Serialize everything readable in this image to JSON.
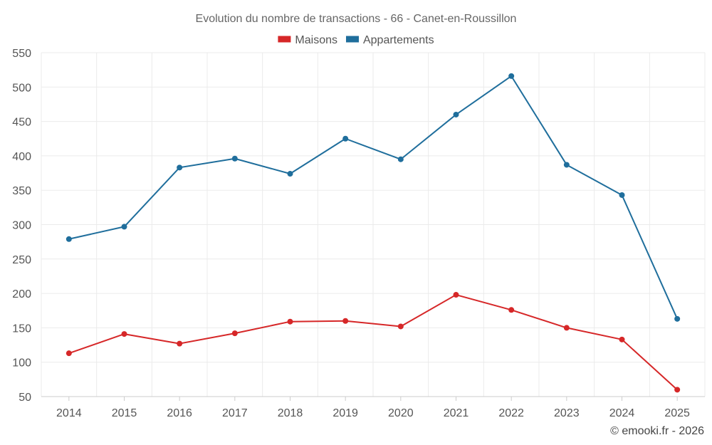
{
  "chart_data": {
    "type": "line",
    "title": "Evolution du nombre de transactions - 66 - Canet-en-Roussillon",
    "categories": [
      "2014",
      "2015",
      "2016",
      "2017",
      "2018",
      "2019",
      "2020",
      "2021",
      "2022",
      "2023",
      "2024",
      "2025"
    ],
    "series": [
      {
        "name": "Maisons",
        "color": "#d62728",
        "values": [
          113,
          141,
          127,
          142,
          159,
          160,
          152,
          198,
          176,
          150,
          133,
          60
        ]
      },
      {
        "name": "Appartements",
        "color": "#1f6e9c",
        "values": [
          279,
          297,
          383,
          396,
          374,
          425,
          395,
          460,
          516,
          387,
          343,
          163
        ]
      }
    ],
    "ylim": [
      50,
      550
    ],
    "yticks": [
      "50",
      "100",
      "150",
      "200",
      "250",
      "300",
      "350",
      "400",
      "450",
      "500",
      "550"
    ],
    "grid": true,
    "legend_position": "top-center",
    "xlabel": "",
    "ylabel": ""
  },
  "credit": "© emooki.fr - 2026"
}
